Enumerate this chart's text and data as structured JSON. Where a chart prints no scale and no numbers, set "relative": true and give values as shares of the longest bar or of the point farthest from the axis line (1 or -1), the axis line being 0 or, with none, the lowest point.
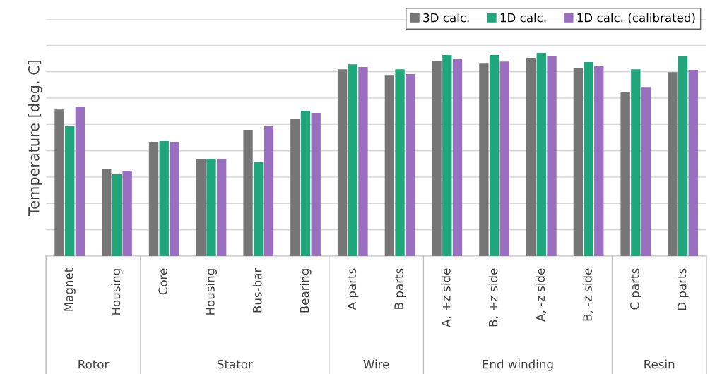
{
  "chart_data": {
    "type": "bar",
    "relative": true,
    "ylabel": "Temperature [deg. C]",
    "grid": "y",
    "legend": "top right",
    "categories": [
      "Magnet",
      "Housing",
      "Core",
      "Housing",
      "Bus-bar",
      "Bearing",
      "A parts",
      "B parts",
      "A, +z side",
      "B, +z side",
      "A, -z side",
      "B, -z side",
      "C parts",
      "D parts"
    ],
    "series": [
      {
        "name": "3D calc.",
        "color": "#767676",
        "values": [
          0.722,
          0.427,
          0.563,
          0.479,
          0.622,
          0.677,
          0.92,
          0.892,
          0.962,
          0.951,
          0.976,
          0.927,
          0.809,
          0.906
        ]
      },
      {
        "name": "1D calc.",
        "color": "#1fa67a",
        "values": [
          0.639,
          0.403,
          0.566,
          0.479,
          0.462,
          0.715,
          0.944,
          0.92,
          0.99,
          0.99,
          1,
          0.955,
          0.92,
          0.983
        ]
      },
      {
        "name": "1D calc. (calibrated)",
        "color": "#9b6fc0",
        "values": [
          0.736,
          0.42,
          0.563,
          0.479,
          0.639,
          0.705,
          0.931,
          0.896,
          0.969,
          0.958,
          0.983,
          0.934,
          0.833,
          0.917
        ]
      }
    ],
    "annotations": [
      "Rotor",
      "Stator",
      "Wire",
      "End winding",
      "Resin"
    ]
  }
}
